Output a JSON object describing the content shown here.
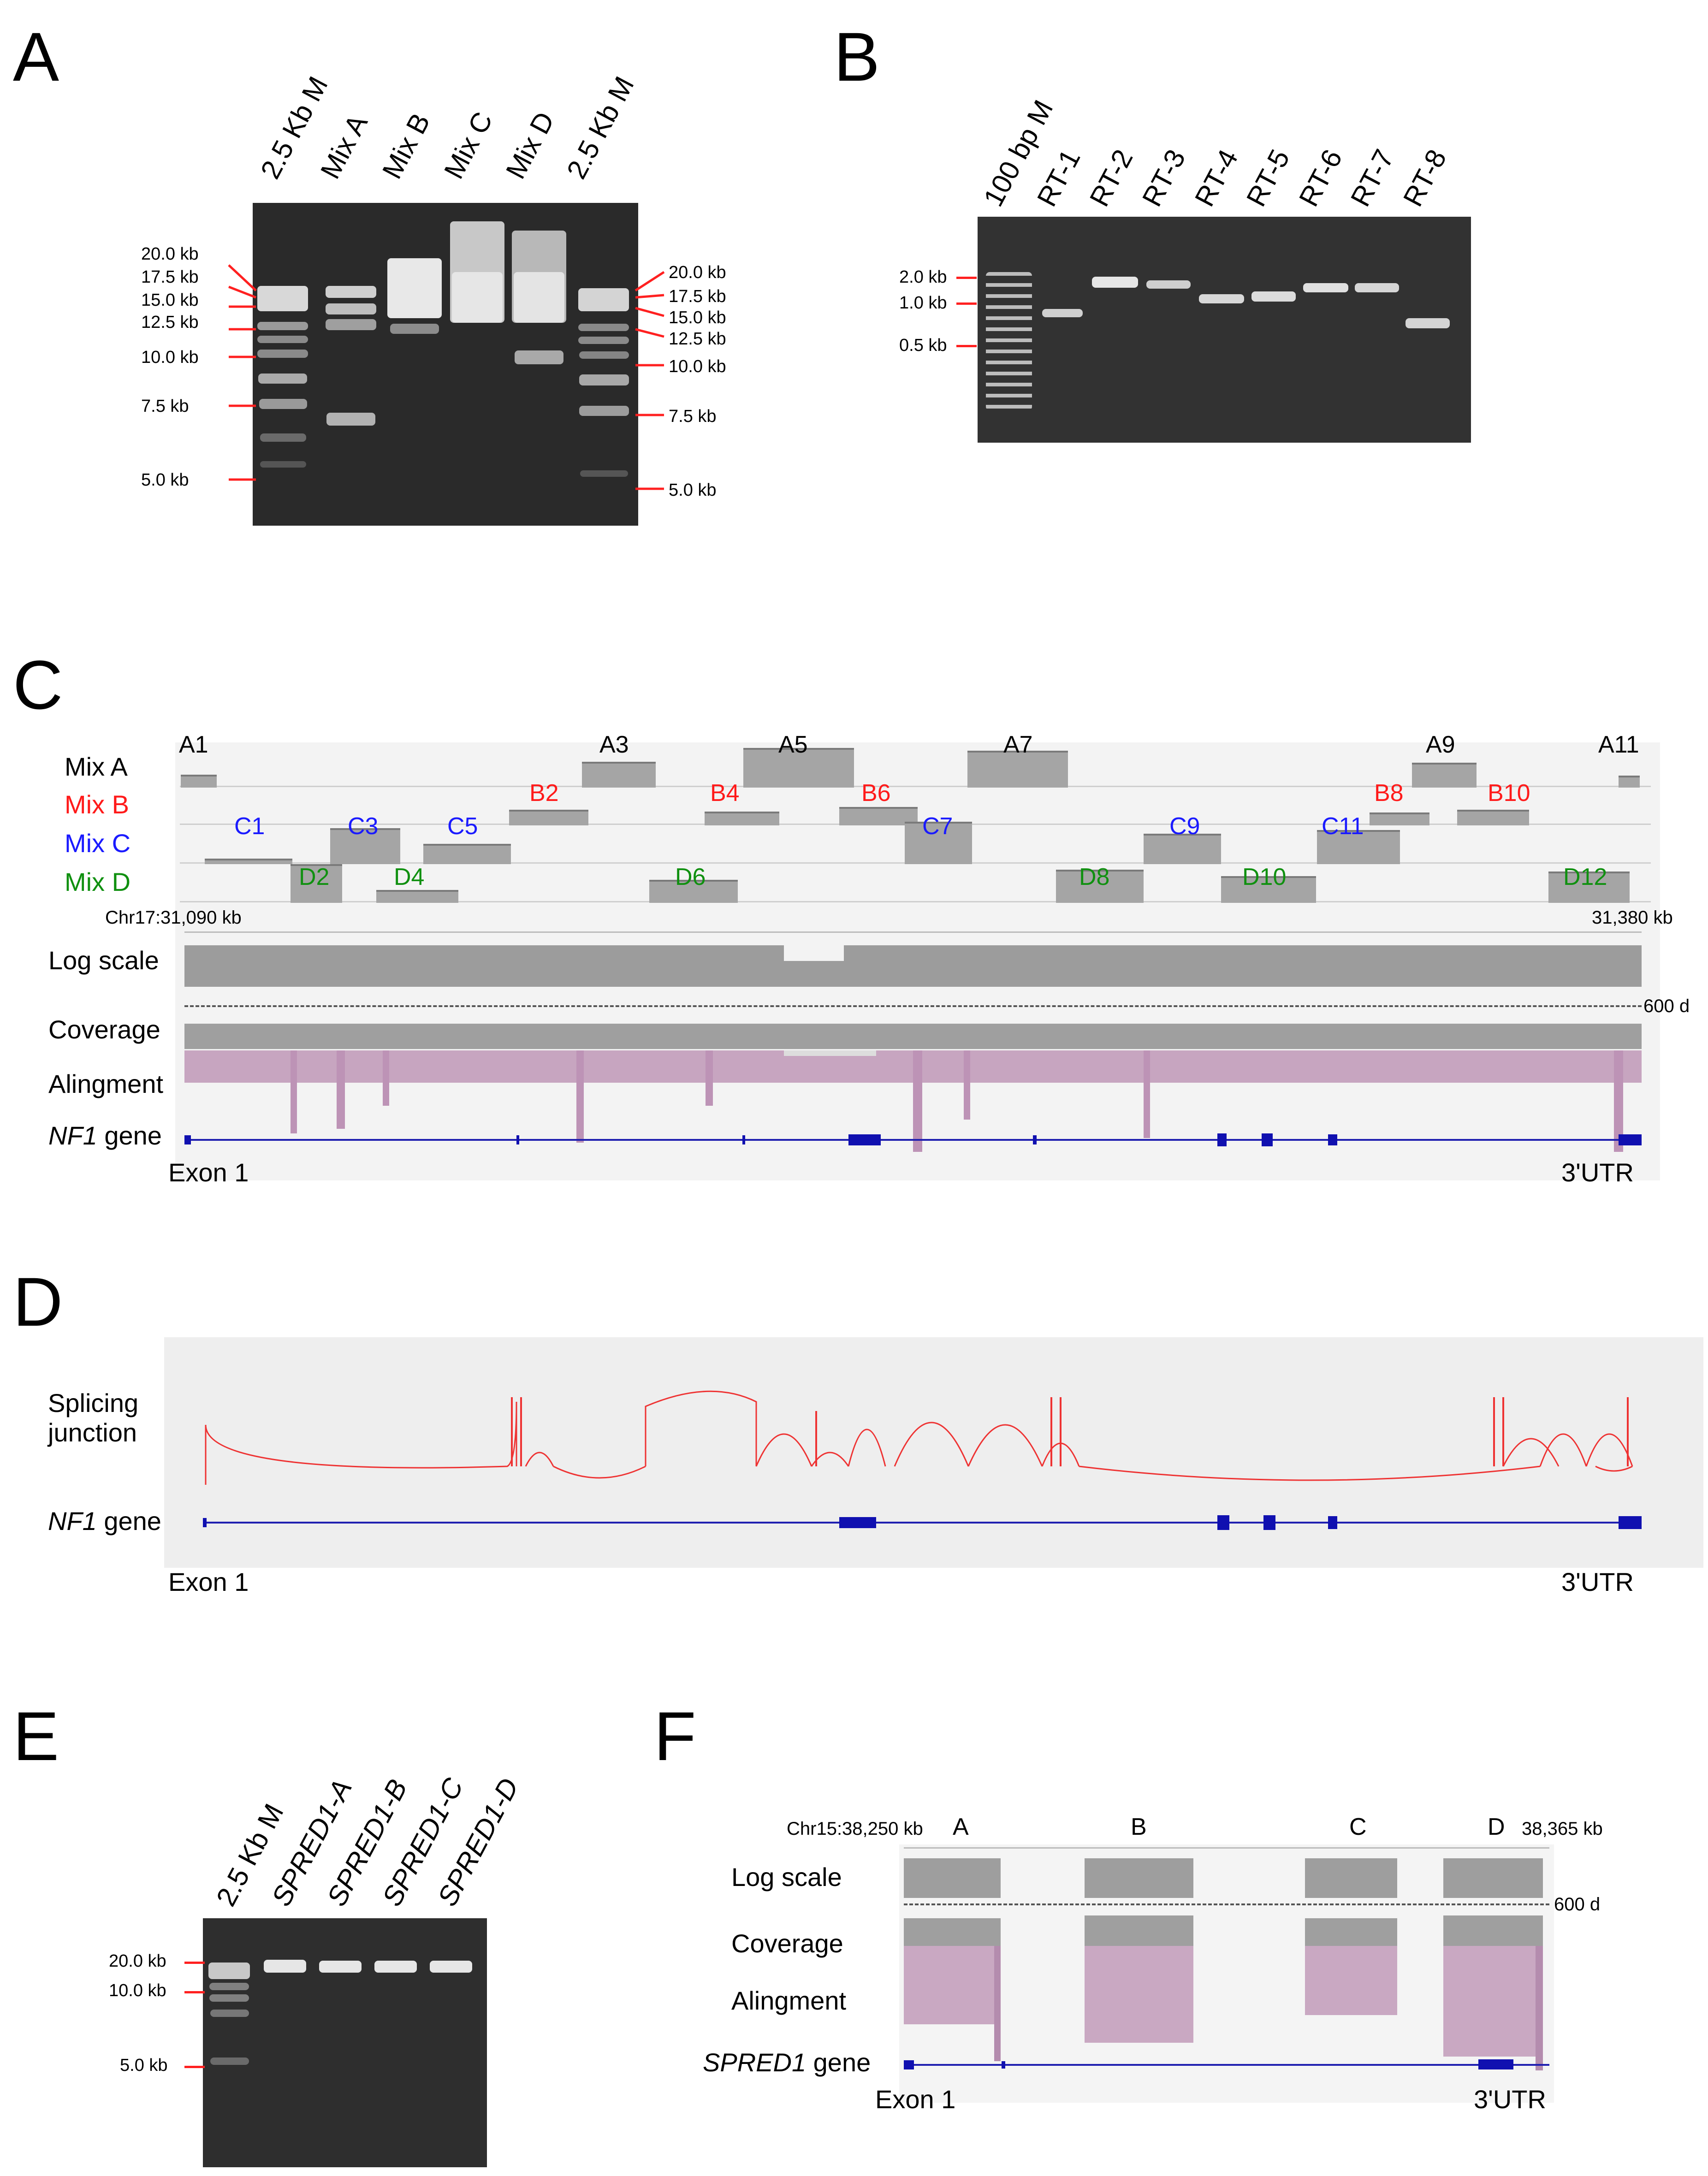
{
  "panels": {
    "A": {
      "letter": "A",
      "lanes": [
        "2.5 Kb M",
        "Mix A",
        "Mix B",
        "Mix C",
        "Mix D",
        "2.5 Kb M"
      ],
      "left_sizes": [
        "20.0 kb",
        "17.5 kb",
        "15.0 kb",
        "12.5 kb",
        "10.0 kb",
        "7.5 kb",
        "5.0 kb"
      ],
      "right_sizes": [
        "20.0 kb",
        "17.5 kb",
        "15.0 kb",
        "12.5 kb",
        "10.0 kb",
        "7.5 kb",
        "5.0 kb"
      ]
    },
    "B": {
      "letter": "B",
      "lanes": [
        "100 bp M",
        "RT-1",
        "RT-2",
        "RT-3",
        "RT-4",
        "RT-5",
        "RT-6",
        "RT-7",
        "RT-8"
      ],
      "sizes": [
        "2.0 kb",
        "1.0 kb",
        "0.5 kb"
      ]
    },
    "C": {
      "letter": "C",
      "mix_labels": [
        "Mix A",
        "Mix B",
        "Mix C",
        "Mix D"
      ],
      "amplicons": {
        "A": [
          "A1",
          "A3",
          "A5",
          "A7",
          "A9",
          "A11"
        ],
        "B": [
          "B2",
          "B4",
          "B6",
          "B8",
          "B10"
        ],
        "C": [
          "C1",
          "C3",
          "C5",
          "C7",
          "C9",
          "C11"
        ],
        "D": [
          "D2",
          "D4",
          "D6",
          "D8",
          "D10",
          "D12"
        ]
      },
      "coord_start": "Chr17:31,090 kb",
      "coord_end": "31,380 kb",
      "track_labels": [
        "Log scale",
        "Coverage",
        "Alingment"
      ],
      "gene_name": "NF1",
      "gene_suffix": " gene",
      "depth": "600 d",
      "start_label": "Exon 1",
      "end_label": "3'UTR"
    },
    "D": {
      "letter": "D",
      "track_label_1": "Splicing",
      "track_label_2": "junction",
      "gene_name": "NF1",
      "gene_suffix": " gene",
      "start_label": "Exon 1",
      "end_label": "3'UTR"
    },
    "E": {
      "letter": "E",
      "lanes": [
        "2.5 Kb M",
        "SPRED1-A",
        "SPRED1-B",
        "SPRED1-C",
        "SPRED1-D"
      ],
      "sizes": [
        "20.0 kb",
        "10.0 kb",
        "5.0 kb"
      ]
    },
    "F": {
      "letter": "F",
      "coord_start": "Chr15:38,250 kb",
      "coord_end": "38,365 kb",
      "segments": [
        "A",
        "B",
        "C",
        "D"
      ],
      "track_labels": [
        "Log scale",
        "Coverage",
        "Alingment"
      ],
      "gene_name": "SPRED1",
      "gene_suffix": " gene",
      "depth": "600 d",
      "start_label": "Exon 1",
      "end_label": "3'UTR"
    }
  },
  "colors": {
    "mix_a": "#000000",
    "mix_b": "#ff1a1a",
    "mix_c": "#1a1aff",
    "mix_d": "#109010",
    "marker_tick": "#ff2020",
    "gene": "#1010b0",
    "junction": "#ee3333"
  }
}
